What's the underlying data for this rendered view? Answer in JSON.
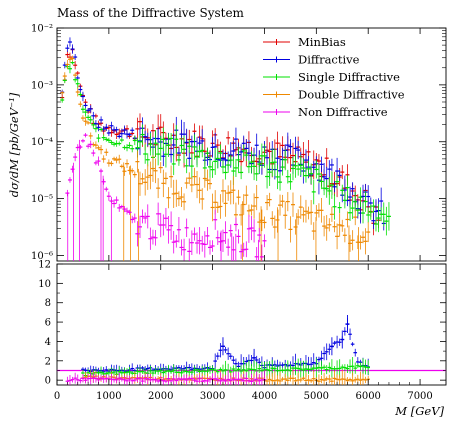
{
  "chart_data": [
    {
      "type": "line",
      "title": "Mass of the Diffractive System",
      "ylabel": "dσ/dM [pb/GeV⁻¹]",
      "xlabel": "",
      "xlim": [
        0,
        7500
      ],
      "ylim": [
        8e-07,
        0.01
      ],
      "yscale": "log",
      "yticks": [
        {
          "value": 1e-06,
          "label": "10⁻⁶"
        },
        {
          "value": 1e-05,
          "label": "10⁻⁵"
        },
        {
          "value": 0.0001,
          "label": "10⁻⁴"
        },
        {
          "value": 0.001,
          "label": "10⁻³"
        },
        {
          "value": 0.01,
          "label": "10⁻²"
        }
      ],
      "legend_position": "top-right",
      "series": [
        {
          "name": "MinBias",
          "color": "#e00000",
          "x": [
            100,
            200,
            300,
            400,
            500,
            700,
            900,
            1200,
            1500,
            2000,
            2500,
            3000,
            3500,
            4000,
            4500,
            5000,
            5500,
            6000,
            6200
          ],
          "y": [
            0.0006,
            0.0035,
            0.004,
            0.0015,
            0.0006,
            0.00025,
            0.00018,
            0.00016,
            0.00014,
            0.00011,
            0.0001,
            9e-05,
            8e-05,
            7e-05,
            5e-05,
            4e-05,
            2e-05,
            8e-06,
            4e-06
          ]
        },
        {
          "name": "Diffractive",
          "color": "#0000e0",
          "x": [
            100,
            200,
            300,
            400,
            500,
            700,
            900,
            1200,
            1500,
            2000,
            2500,
            3000,
            3500,
            4000,
            4500,
            5000,
            5500,
            6000,
            6300
          ],
          "y": [
            0.0008,
            0.005,
            0.0045,
            0.0016,
            0.0006,
            0.00025,
            0.00018,
            0.00015,
            0.00013,
            0.0001,
            9e-05,
            8e-05,
            7e-05,
            6e-05,
            5e-05,
            4e-05,
            2e-05,
            7e-06,
            5e-06
          ]
        },
        {
          "name": "Single Diffractive",
          "color": "#00e000",
          "x": [
            100,
            200,
            300,
            400,
            500,
            700,
            900,
            1200,
            1500,
            2000,
            2500,
            3000,
            3500,
            4000,
            4500,
            5000,
            5500,
            6000,
            6400
          ],
          "y": [
            0.0005,
            0.0022,
            0.002,
            0.0009,
            0.0004,
            0.00017,
            0.00012,
            0.0001,
            9e-05,
            7e-05,
            6e-05,
            5e-05,
            4e-05,
            4e-05,
            3e-05,
            2e-05,
            1e-05,
            7e-06,
            5e-06
          ]
        },
        {
          "name": "Double Diffractive",
          "color": "#ee8800",
          "x": [
            100,
            200,
            300,
            400,
            500,
            700,
            900,
            1200,
            1500,
            2000,
            2500,
            3000,
            3500,
            4000,
            4500,
            5000,
            5500,
            6000
          ],
          "y": [
            0.0006,
            0.0028,
            0.0024,
            0.0009,
            0.0003,
            0.0001,
            6e-05,
            4e-05,
            3e-05,
            2e-05,
            1.5e-05,
            1.2e-05,
            8e-06,
            6e-06,
            5e-06,
            4e-06,
            3e-06,
            2.5e-06
          ]
        },
        {
          "name": "Non Diffractive",
          "color": "#ee00ee",
          "x": [
            200,
            300,
            400,
            500,
            600,
            800,
            1000,
            1500,
            2000,
            2500,
            3000,
            3500,
            4000
          ],
          "y": [
            1e-05,
            3e-05,
            8e-05,
            0.00012,
            0.0001,
            4e-05,
            1e-05,
            4e-06,
            3e-06,
            2e-06,
            2.5e-06,
            2e-06,
            1.5e-06
          ]
        }
      ]
    },
    {
      "type": "line",
      "title": "",
      "xlabel": "M [GeV]",
      "ylabel": "",
      "xlim": [
        0,
        7500
      ],
      "ylim": [
        -0.5,
        12
      ],
      "xticks": [
        0,
        1000,
        2000,
        3000,
        4000,
        5000,
        6000,
        7000
      ],
      "yticks": [
        0,
        2,
        4,
        6,
        8,
        10,
        12
      ],
      "reference_line": 1,
      "series": [
        {
          "color": "#0000e0",
          "x": [
            500,
            1000,
            1500,
            2000,
            2500,
            3000,
            3200,
            3500,
            3800,
            4000,
            4500,
            5000,
            5300,
            5500,
            5600,
            5800,
            6000
          ],
          "y": [
            1.0,
            1.0,
            1.1,
            1.2,
            1.2,
            1.3,
            3.5,
            1.4,
            2.3,
            1.4,
            1.6,
            1.8,
            3.5,
            4.2,
            5.8,
            1.8,
            1.5
          ]
        },
        {
          "color": "#00e000",
          "x": [
            500,
            1000,
            1500,
            2000,
            2500,
            3000,
            3500,
            4000,
            4500,
            5000,
            5500,
            6000
          ],
          "y": [
            0.6,
            0.7,
            0.8,
            0.9,
            0.9,
            1.0,
            1.0,
            1.1,
            1.1,
            1.2,
            1.3,
            1.4
          ]
        },
        {
          "color": "#ee8800",
          "x": [
            500,
            1000,
            1500,
            2000,
            2500,
            3000,
            3500,
            4000,
            4500,
            5000,
            5500,
            6000
          ],
          "y": [
            0.3,
            0.25,
            0.2,
            0.15,
            0.12,
            0.1,
            0.08,
            0.06,
            0.05,
            0.04,
            0.03,
            0.02
          ]
        },
        {
          "color": "#ee00ee",
          "x": [
            200,
            500,
            1000,
            1500,
            2000,
            3000,
            4000
          ],
          "y": [
            0.02,
            0.1,
            0.08,
            0.05,
            0.04,
            0.03,
            0.02
          ]
        }
      ]
    }
  ]
}
